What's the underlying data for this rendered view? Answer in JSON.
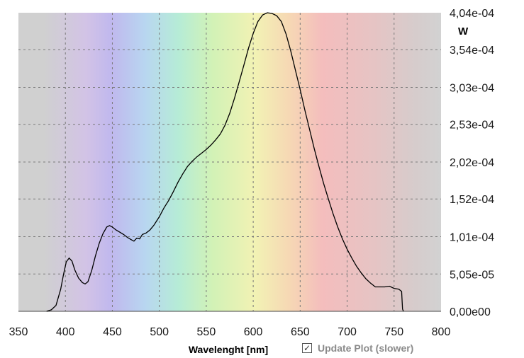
{
  "chart_data": {
    "type": "line",
    "xlabel": "Wavelenght [nm]",
    "y_unit": "W",
    "xlim": [
      350,
      800
    ],
    "ylim": [
      0,
      0.000404
    ],
    "x_ticks": [
      350,
      400,
      450,
      500,
      550,
      600,
      650,
      700,
      750,
      800
    ],
    "y_ticks": [
      0,
      5.05e-05,
      0.000101,
      0.000152,
      0.000202,
      0.000253,
      0.000303,
      0.000354,
      0.000404
    ],
    "y_tick_labels": [
      "0,00e00",
      "5,05e-05",
      "1,01e-04",
      "1,52e-04",
      "2,02e-04",
      "2,53e-04",
      "3,03e-04",
      "3,54e-04",
      "4,04e-04"
    ],
    "grid": true,
    "legend": "none",
    "background": "visible-spectrum gradient",
    "series": [
      {
        "x": [
          380,
          385,
          390,
          395,
          398,
          401,
          404,
          407,
          410,
          414,
          418,
          421,
          424,
          428,
          432,
          436,
          440,
          444,
          447,
          450,
          454,
          458,
          462,
          466,
          470,
          473,
          476,
          479,
          482,
          486,
          490,
          494,
          497,
          500,
          505,
          510,
          515,
          520,
          525,
          530,
          535,
          540,
          545,
          550,
          555,
          560,
          565,
          570,
          575,
          580,
          585,
          590,
          595,
          600,
          605,
          610,
          615,
          620,
          625,
          630,
          635,
          640,
          645,
          650,
          655,
          660,
          665,
          670,
          675,
          680,
          685,
          690,
          695,
          700,
          705,
          710,
          715,
          720,
          725,
          730,
          735,
          740,
          745,
          750,
          755,
          758,
          759,
          760
        ],
        "y": [
          0,
          2e-06,
          8e-06,
          3e-05,
          5e-05,
          6.7e-05,
          7.2e-05,
          6.8e-05,
          5.6e-05,
          4.5e-05,
          3.9e-05,
          3.7e-05,
          4e-05,
          5.5e-05,
          7.5e-05,
          9.2e-05,
          0.000105,
          0.000114,
          0.000116,
          0.000114,
          0.00011,
          0.000107,
          0.000104,
          0.0001,
          9.7e-05,
          9.5e-05,
          9.9e-05,
          9.8e-05,
          0.000104,
          0.000106,
          0.00011,
          0.000116,
          0.000122,
          0.000128,
          0.00014,
          0.00015,
          0.000162,
          0.000175,
          0.000186,
          0.000196,
          0.000203,
          0.000209,
          0.000214,
          0.000219,
          0.000225,
          0.000232,
          0.00024,
          0.000252,
          0.000268,
          0.000288,
          0.00031,
          0.000333,
          0.000356,
          0.000376,
          0.000392,
          0.000401,
          0.000404,
          0.000403,
          0.0004,
          0.000392,
          0.000375,
          0.000352,
          0.000326,
          0.0003,
          0.000272,
          0.000246,
          0.00022,
          0.000196,
          0.000173,
          0.000152,
          0.000132,
          0.000114,
          9.8e-05,
          8.4e-05,
          7.2e-05,
          6.1e-05,
          5.2e-05,
          4.4e-05,
          3.8e-05,
          3.3e-05,
          3.3e-05,
          3.3e-05,
          3.4e-05,
          3.1e-05,
          3e-05,
          2.7e-05,
          3e-06,
          0
        ]
      }
    ]
  },
  "controls": {
    "update_plot_label": "Update Plot (slower)",
    "update_plot_checked": true,
    "check_mark": "☑"
  }
}
